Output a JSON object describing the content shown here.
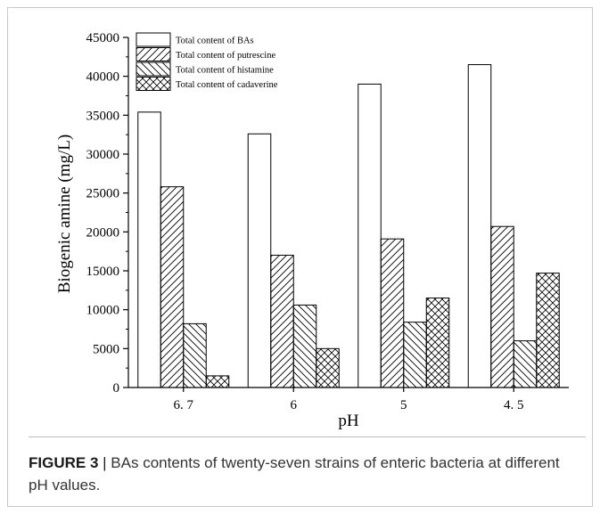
{
  "caption": {
    "label": "FIGURE 3",
    "separator": "|",
    "text": "BAs contents of twenty-seven strains of enteric bacteria at different pH values."
  },
  "colors": {
    "axis": "#000000",
    "bar_fill": "#ffffff",
    "caption_text": "#333333"
  },
  "chart_data": {
    "type": "bar",
    "xlabel": "pH",
    "ylabel": "Biogenic amine (mg/L)",
    "categories": [
      "6. 7",
      "6",
      "5",
      "4. 5"
    ],
    "ylim": [
      0,
      45000
    ],
    "yticks": [
      0,
      5000,
      10000,
      15000,
      20000,
      25000,
      30000,
      35000,
      40000,
      45000
    ],
    "legend_position": "top-left",
    "grid": false,
    "series": [
      {
        "name": "Total content of BAs",
        "pattern": "none",
        "values": [
          35400,
          32600,
          39000,
          41500
        ]
      },
      {
        "name": "Total content of putrescine",
        "pattern": "forward-hatch",
        "values": [
          25800,
          17000,
          19100,
          20700
        ]
      },
      {
        "name": "Total content of histamine",
        "pattern": "back-hatch",
        "values": [
          8200,
          10600,
          8400,
          6000
        ]
      },
      {
        "name": "Total content of cadaverine",
        "pattern": "cross-hatch",
        "values": [
          1500,
          5000,
          11500,
          14700
        ]
      }
    ]
  }
}
